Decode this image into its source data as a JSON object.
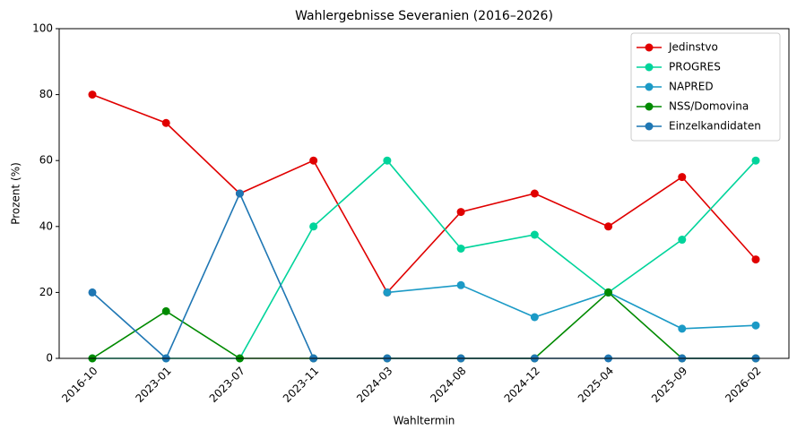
{
  "chart_data": {
    "type": "line",
    "title": "Wahlergebnisse Severanien (2016–2026)",
    "x_label": "Wahltermin",
    "y_label": "Prozent (%)",
    "categories": [
      "2016-10",
      "2023-01",
      "2023-07",
      "2023-11",
      "2024-03",
      "2024-08",
      "2024-12",
      "2025-04",
      "2025-09",
      "2026-02"
    ],
    "series": [
      {
        "name": "Jedinstvo",
        "color": "#e00000",
        "values": [
          80,
          71.4,
          50,
          60,
          20,
          44.4,
          50,
          40,
          55,
          30
        ]
      },
      {
        "name": "PROGRES",
        "color": "#00d49b",
        "values": [
          0,
          0,
          0,
          40,
          60,
          33.3,
          37.5,
          20,
          36,
          60
        ]
      },
      {
        "name": "NAPRED",
        "color": "#1b9ac6",
        "values": [
          null,
          null,
          null,
          null,
          20,
          22.2,
          12.5,
          20,
          9,
          10
        ]
      },
      {
        "name": "NSS/Domovina",
        "color": "#008a00",
        "values": [
          0,
          14.3,
          0,
          0,
          0,
          0,
          0,
          20,
          0,
          0
        ]
      },
      {
        "name": "Einzelkandidaten",
        "color": "#1f77b4",
        "values": [
          20,
          0,
          50,
          0,
          0,
          0,
          0,
          0,
          0,
          0
        ]
      }
    ],
    "ylim": [
      0,
      100
    ],
    "yticks": [
      0,
      20,
      40,
      60,
      80,
      100
    ],
    "grid": false,
    "legend": "upper-right"
  }
}
